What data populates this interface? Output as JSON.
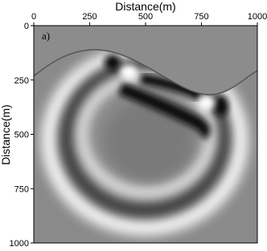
{
  "chart_data": {
    "type": "image",
    "annotation": "a)",
    "xlabel": "Distance(m)",
    "ylabel": "Distance(m)",
    "xlim": [
      0,
      1000
    ],
    "ylim": [
      1000,
      0
    ],
    "xticks": [
      0,
      250,
      500,
      750,
      1000
    ],
    "yticks": [
      0,
      250,
      500,
      750,
      1000
    ],
    "colormap": "gray"
  }
}
